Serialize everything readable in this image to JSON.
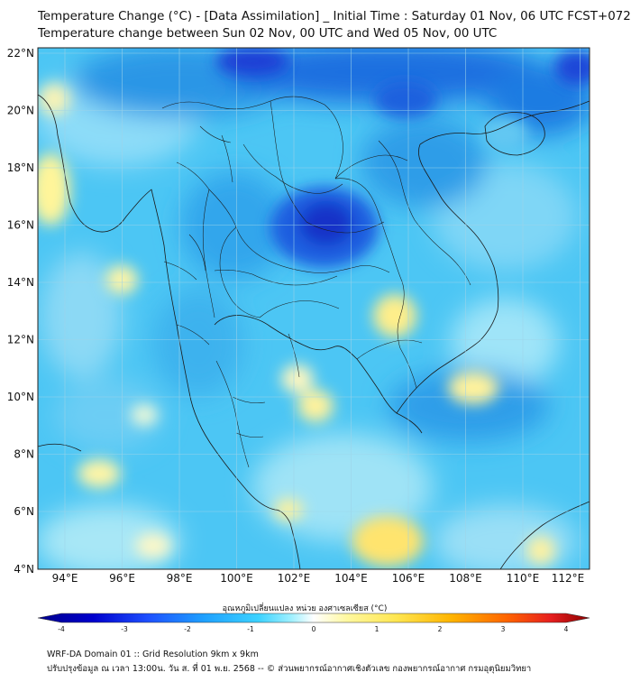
{
  "header": {
    "title_line1": "Temperature Change (°C) - [Data Assimilation] _ Initial Time : Saturday 01 Nov, 06 UTC FCST+072",
    "title_line2": "Temperature change between Sun 02 Nov, 00 UTC and Wed 05 Nov, 00 UTC"
  },
  "map": {
    "lat_ticks": [
      "22°N",
      "20°N",
      "18°N",
      "16°N",
      "14°N",
      "12°N",
      "10°N",
      "8°N",
      "6°N",
      "4°N"
    ],
    "lon_ticks": [
      "94°E",
      "96°E",
      "98°E",
      "100°E",
      "102°E",
      "104°E",
      "106°E",
      "108°E",
      "110°E",
      "112°E"
    ],
    "lat_range": [
      4,
      22.3
    ],
    "lon_range": [
      93,
      112.4
    ],
    "grid": true,
    "variable": "temperature change",
    "units": "°C"
  },
  "colorbar": {
    "label": "อุณหภูมิเปลี่ยนแปลง หน่วย องศาเซลเซียส (°C)",
    "range": [
      -4,
      4
    ],
    "tick_labels": [
      "-4",
      "-3",
      "-2",
      "-1",
      "0",
      "1",
      "2",
      "3",
      "4"
    ],
    "colors": [
      "#00008b",
      "#0000cd",
      "#1e50ff",
      "#1ea0ff",
      "#3cd2ff",
      "#a0f0ff",
      "#ffffff",
      "#fff8a0",
      "#ffe650",
      "#ffb400",
      "#ff6400",
      "#e61e1e",
      "#8b0000"
    ]
  },
  "footer": {
    "line1": "WRF-DA Domain 01 :: Grid Resolution 9km x 9km",
    "line2": "ปรับปรุงข้อมูล ณ เวลา 13:00น. วัน ส. ที่ 01 พ.ย. 2568 -- © ส่วนพยากรณ์อากาศเชิงตัวเลข กองพยากรณ์อากาศ กรมอุตุนิยมวิทยา"
  }
}
